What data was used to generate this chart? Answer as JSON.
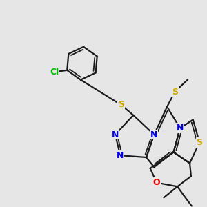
{
  "background_color": "#e6e6e6",
  "bond_color": "#1a1a1a",
  "bond_width": 1.6,
  "atom_colors": {
    "N": "#0000ee",
    "S": "#ccaa00",
    "O": "#ee0000",
    "Cl": "#00bb00",
    "C": "#1a1a1a"
  },
  "font_size_large": 9,
  "font_size_small": 8
}
